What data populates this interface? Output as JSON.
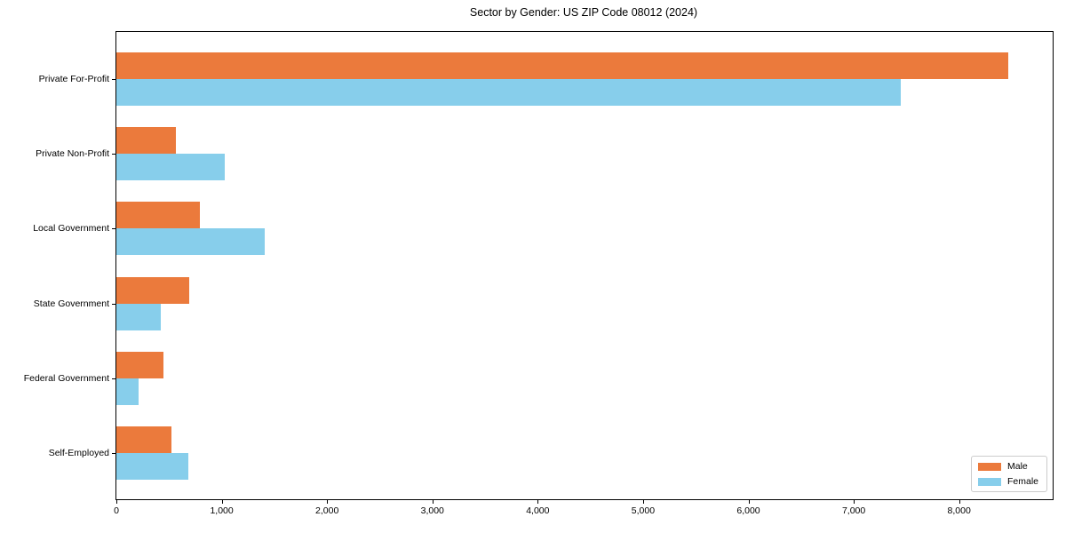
{
  "chart_data": {
    "type": "bar",
    "orientation": "horizontal",
    "title": "Sector by Gender: US ZIP Code 08012 (2024)",
    "categories": [
      "Private For-Profit",
      "Private Non-Profit",
      "Local Government",
      "State Government",
      "Federal Government",
      "Self-Employed"
    ],
    "series": [
      {
        "name": "Male",
        "color": "#EB7A3C",
        "values": [
          8465,
          565,
          790,
          690,
          450,
          525
        ]
      },
      {
        "name": "Female",
        "color": "#87CEEB",
        "values": [
          7450,
          1030,
          1410,
          420,
          210,
          680
        ]
      }
    ],
    "xlabel": "",
    "ylabel": "",
    "xlim": [
      0,
      8888
    ],
    "xticks": [
      0,
      1000,
      2000,
      3000,
      4000,
      5000,
      6000,
      7000,
      8000
    ],
    "xtick_labels": [
      "0",
      "1,000",
      "2,000",
      "3,000",
      "4,000",
      "5,000",
      "6,000",
      "7,000",
      "8,000"
    ],
    "legend": {
      "position": "lower right",
      "entries": [
        "Male",
        "Female"
      ]
    },
    "grid": false,
    "background": "#ffffff",
    "spine_color": "#000000"
  }
}
